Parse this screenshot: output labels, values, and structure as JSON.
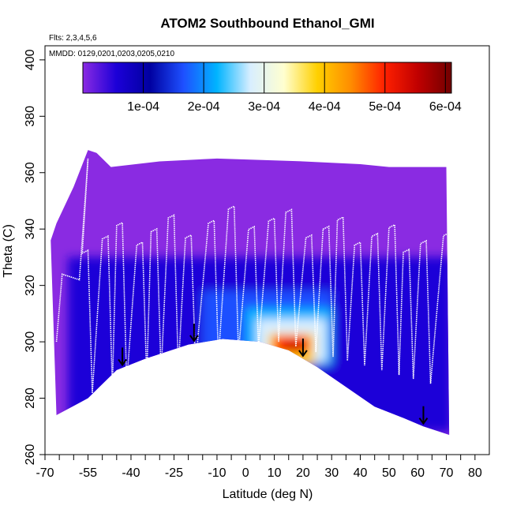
{
  "chart_data": {
    "type": "heatmap",
    "title": "ATOM2 Southbound Ethanol_GMI",
    "annotations": [
      "Flts: 2,3,4,5,6",
      "MMDD: 0129,0201,0203,0205,0210"
    ],
    "xlabel": "Latitude (deg N)",
    "ylabel": "Theta (C)",
    "xlim": [
      -70,
      85
    ],
    "ylim": [
      260,
      405
    ],
    "x_tick_labels": [
      "-70",
      "-55",
      "-40",
      "-25",
      "-10",
      "0",
      "10",
      "20",
      "30",
      "40",
      "50",
      "60",
      "70",
      "80"
    ],
    "x_ticks": [
      -70,
      -55,
      -40,
      -25,
      -10,
      0,
      10,
      20,
      30,
      40,
      50,
      60,
      70,
      80
    ],
    "y_tick_labels": [
      "260",
      "280",
      "300",
      "320",
      "340",
      "360",
      "380",
      "400"
    ],
    "y_ticks": [
      260,
      280,
      300,
      320,
      340,
      360,
      380,
      400
    ],
    "colorbar": {
      "range": [
        0,
        0.00061
      ],
      "tick_values": [
        0.0001,
        0.0002,
        0.0003,
        0.0004,
        0.0005,
        0.0006
      ],
      "tick_labels": [
        "1e-04",
        "2e-04",
        "3e-04",
        "4e-04",
        "5e-04",
        "6e-04"
      ],
      "colors": [
        "#8a2be2",
        "#1c00d8",
        "#0000a0",
        "#1e50ff",
        "#00b4ff",
        "#d8eeff",
        "#ffffd0",
        "#ffd000",
        "#ff8c00",
        "#ff2000",
        "#c00000",
        "#700000"
      ]
    },
    "surface_theta": [
      [
        -66,
        274
      ],
      [
        -55,
        280
      ],
      [
        -45,
        290
      ],
      [
        -35,
        294
      ],
      [
        -20,
        299
      ],
      [
        -8,
        301
      ],
      [
        5,
        300
      ],
      [
        15,
        297
      ],
      [
        25,
        291
      ],
      [
        35,
        284
      ],
      [
        45,
        277
      ],
      [
        55,
        273
      ],
      [
        62,
        270
      ],
      [
        71,
        267
      ]
    ],
    "top_theta": [
      [
        -68,
        336
      ],
      [
        -66,
        342
      ],
      [
        -60,
        355
      ],
      [
        -55,
        368
      ],
      [
        -52,
        367
      ],
      [
        -47,
        362
      ],
      [
        -30,
        364
      ],
      [
        -10,
        365
      ],
      [
        20,
        364
      ],
      [
        40,
        363
      ],
      [
        50,
        362
      ],
      [
        70,
        362
      ]
    ],
    "arrows_latitude": [
      -43,
      -18,
      20,
      62
    ],
    "ethanol_max_region": {
      "lat": [
        8,
        24
      ],
      "theta": [
        292,
        303
      ],
      "value": 0.0005
    }
  }
}
